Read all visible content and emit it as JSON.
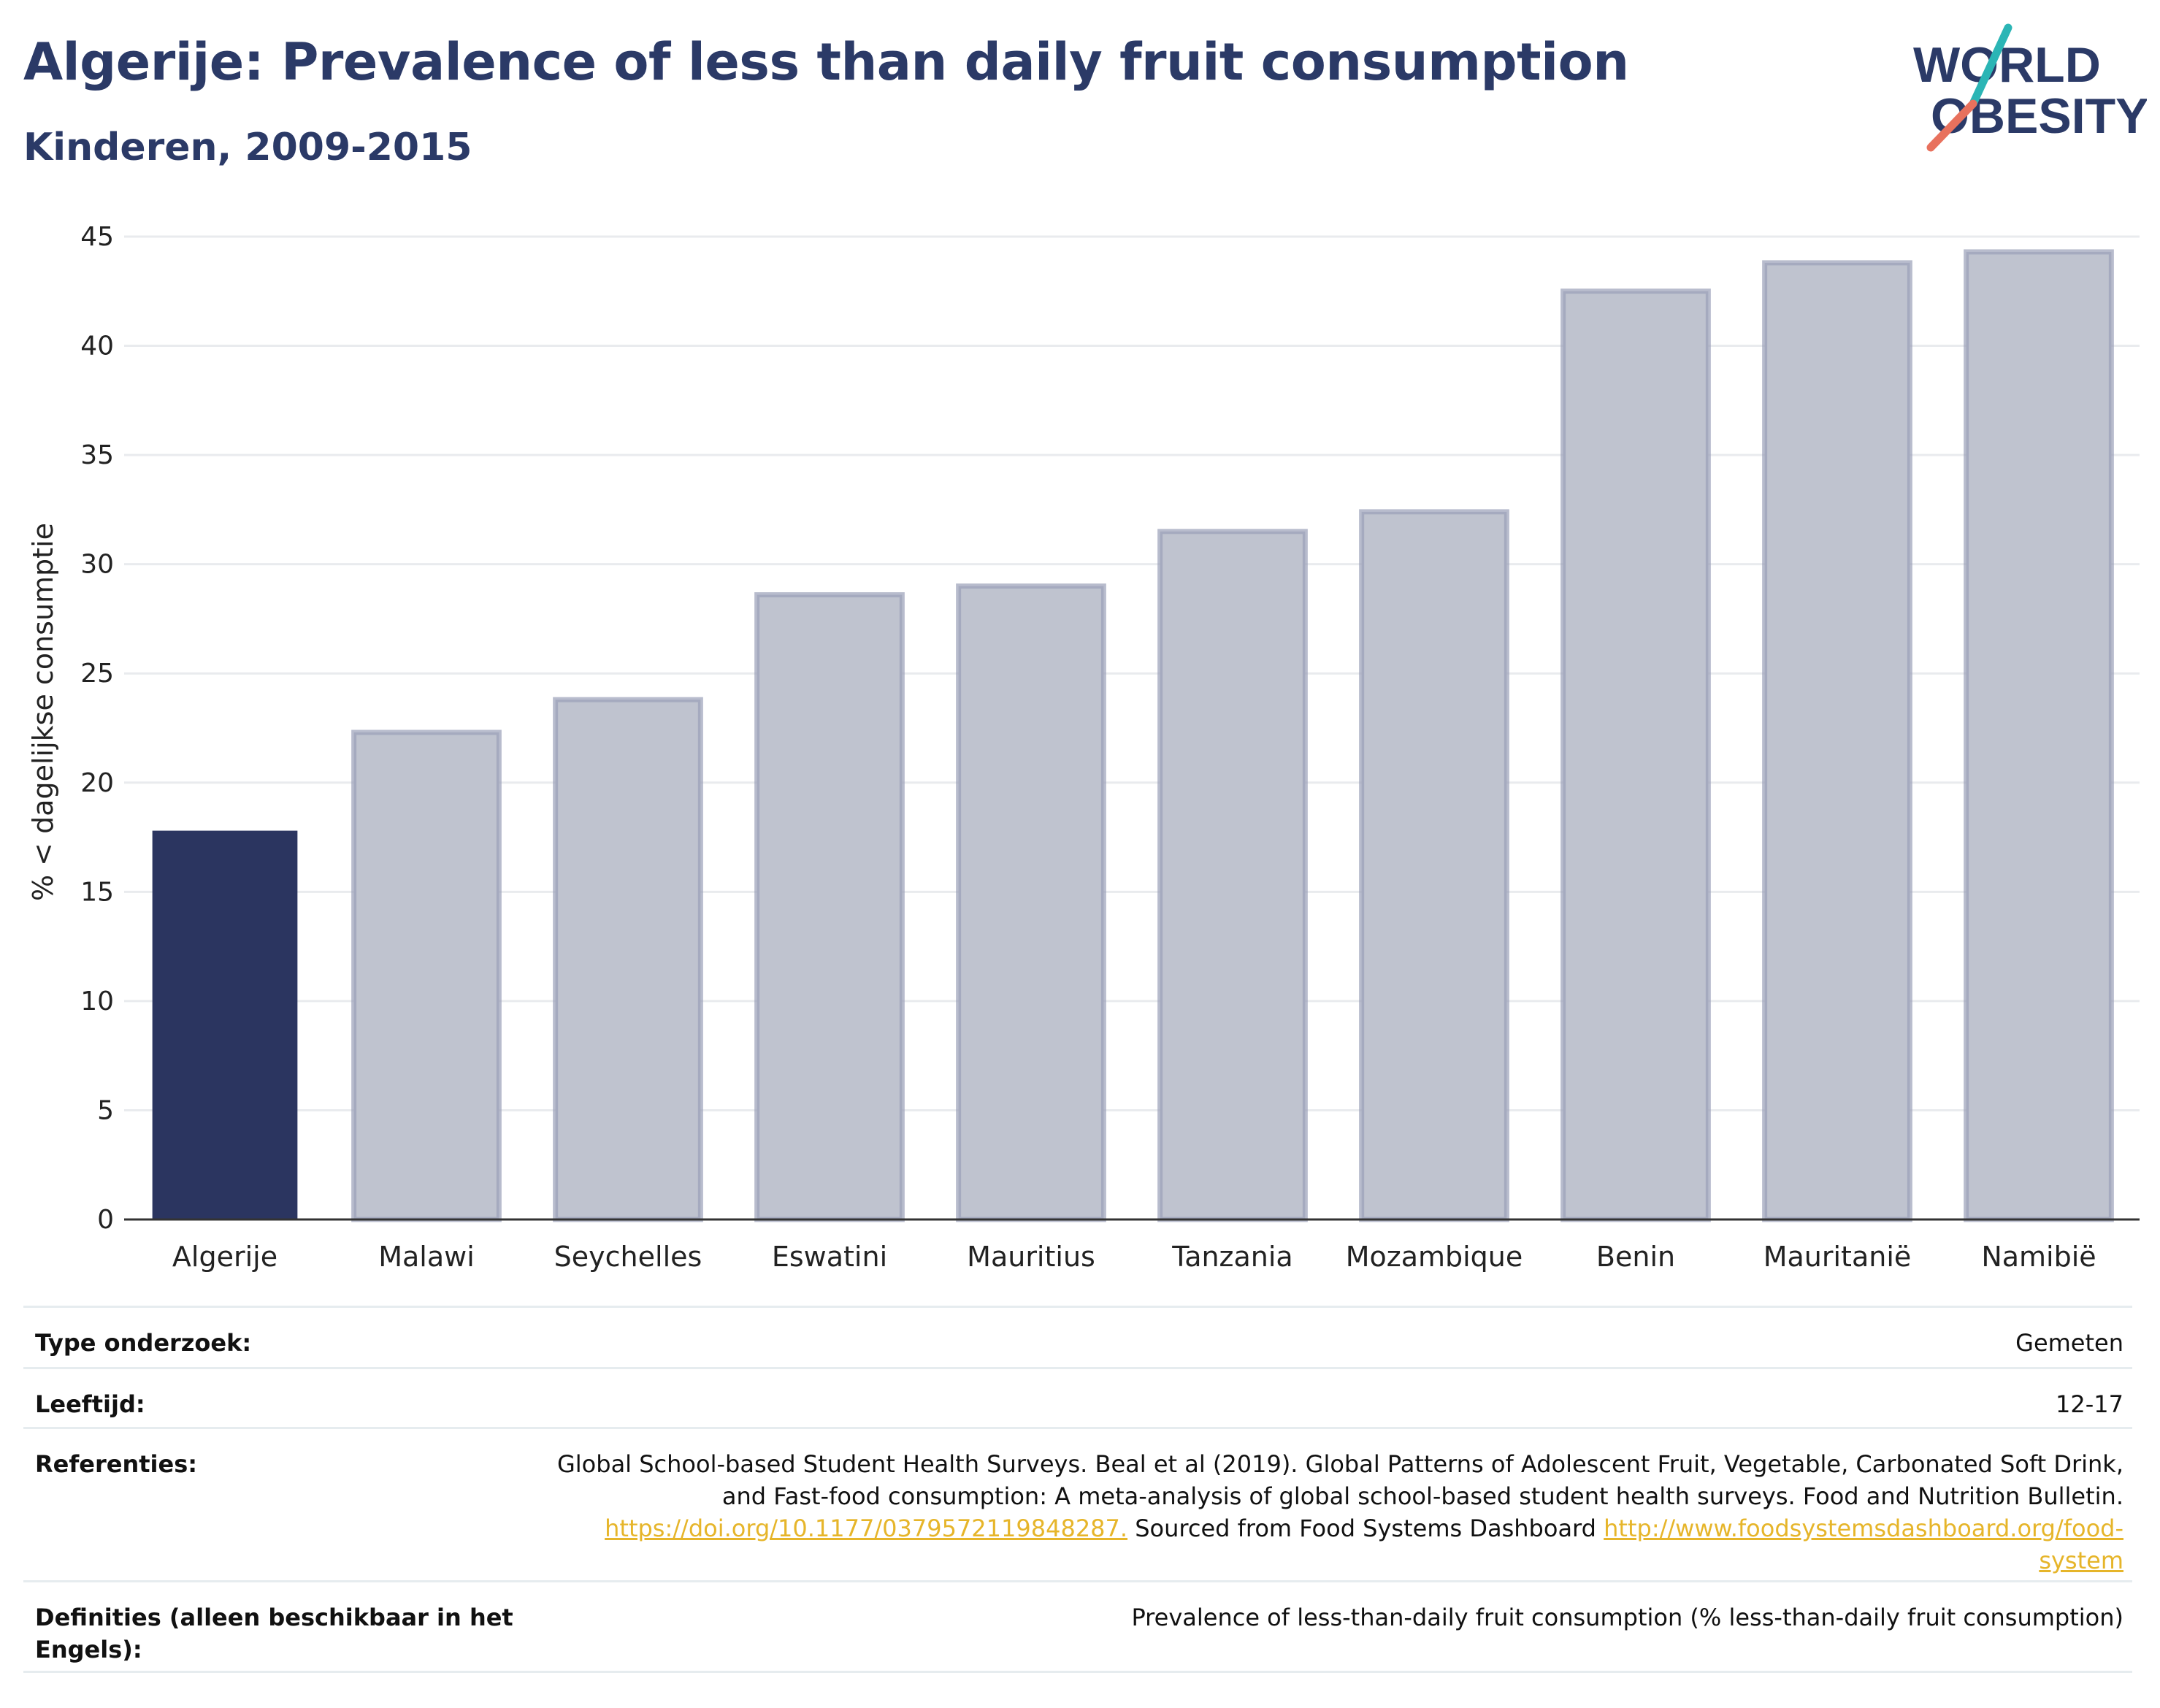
{
  "title": "Algerije: Prevalence of less than daily fruit consumption",
  "subtitle": "Kinderen, 2009-2015",
  "logo": {
    "line1": "WORLD",
    "line2": "OBESITY",
    "accent_colors": [
      "#2bb5b5",
      "#e8715d"
    ],
    "text_color": "#2b3a67"
  },
  "colors": {
    "highlight": "#2b3560",
    "other": "#bfc3cf",
    "other_border": "#9aa0b8",
    "axis": "#333333",
    "grid": "#e9ebee"
  },
  "chart_data": {
    "type": "bar",
    "ylabel": "% < dagelijkse consumptie",
    "ylim": [
      0,
      45
    ],
    "yticks": [
      0,
      5,
      10,
      15,
      20,
      25,
      30,
      35,
      40,
      45
    ],
    "grid": true,
    "categories": [
      "Algerije",
      "Malawi",
      "Seychelles",
      "Eswatini",
      "Mauritius",
      "Tanzania",
      "Mozambique",
      "Benin",
      "Mauritanië",
      "Namibië"
    ],
    "values": [
      17.8,
      22.3,
      23.8,
      28.6,
      29.0,
      31.5,
      32.4,
      42.5,
      43.8,
      44.3
    ],
    "highlight": "Algerije"
  },
  "meta": {
    "type_label": "Type onderzoek:",
    "type_value": "Gemeten",
    "age_label": "Leeftijd:",
    "age_value": "12-17",
    "ref_label": "Referenties:",
    "ref_text1": "Global School-based Student Health Surveys. Beal et al (2019). Global Patterns of Adolescent Fruit, Vegetable, Carbonated Soft Drink,",
    "ref_text2": "and Fast-food consumption: A meta-analysis of global school-based student health surveys. Food and Nutrition Bulletin.",
    "ref_link1": "https://doi.org/10.1177/0379572119848287.",
    "ref_text3": " Sourced from Food Systems Dashboard ",
    "ref_link2a": "http://www.foodsystemsdashboard.org/food-",
    "ref_link2b": "system",
    "def_label1": "Definities (alleen beschikbaar in het",
    "def_label2": "Engels):",
    "def_value": "Prevalence of less-than-daily fruit consumption (% less-than-daily fruit consumption)"
  }
}
